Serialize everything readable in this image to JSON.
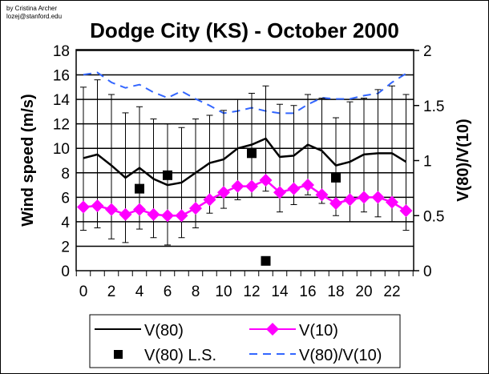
{
  "credit": {
    "author": "by Cristina Archer",
    "email": "lozej@stanford.edu"
  },
  "chart_data": {
    "type": "line",
    "title": "Dodge City (KS) - October 2000",
    "xlabel": "",
    "ylabel": "Wind speed (m/s)",
    "y2label": "V(80)/V(10)",
    "xlim": [
      0,
      23
    ],
    "ylim": [
      0,
      18
    ],
    "y2lim": [
      0,
      2
    ],
    "x": [
      0,
      1,
      2,
      3,
      4,
      5,
      6,
      7,
      8,
      9,
      10,
      11,
      12,
      13,
      14,
      15,
      16,
      17,
      18,
      19,
      20,
      21,
      22,
      23
    ],
    "x_ticks": [
      "0",
      "2",
      "4",
      "6",
      "8",
      "10",
      "12",
      "14",
      "16",
      "18",
      "20",
      "22"
    ],
    "y_ticks": [
      "0",
      "2",
      "4",
      "6",
      "8",
      "10",
      "12",
      "14",
      "16",
      "18"
    ],
    "y2_ticks": [
      "0",
      "0.5",
      "1",
      "1.5",
      "2"
    ],
    "grid": true,
    "legend_position": "bottom",
    "colors": {
      "v80": "#000000",
      "v10": "#ff00ff",
      "ls": "#000000",
      "ratio": "#3366ff"
    },
    "series": [
      {
        "name": "V(80)",
        "axis": "left",
        "values": [
          9.2,
          9.5,
          8.6,
          7.6,
          8.4,
          7.5,
          7.0,
          7.2,
          8.0,
          8.8,
          9.1,
          10.0,
          10.3,
          10.8,
          9.3,
          9.4,
          10.3,
          9.8,
          8.6,
          8.9,
          9.5,
          9.6,
          9.6,
          8.9
        ],
        "error_high": [
          15.0,
          15.6,
          14.4,
          12.9,
          13.4,
          12.4,
          12.0,
          11.7,
          12.4,
          12.7,
          13.1,
          14.0,
          14.5,
          15.1,
          13.6,
          13.5,
          14.4,
          14.1,
          12.5,
          13.8,
          14.1,
          14.8,
          15.1,
          14.4
        ],
        "error_low": [
          3.3,
          3.5,
          2.6,
          2.3,
          3.4,
          2.7,
          2.1,
          2.7,
          3.5,
          4.7,
          5.1,
          5.8,
          6.0,
          6.5,
          4.8,
          5.4,
          6.2,
          5.5,
          4.5,
          4.0,
          4.8,
          4.4,
          4.0,
          3.3
        ]
      },
      {
        "name": "V(10)",
        "axis": "left",
        "values": [
          5.2,
          5.3,
          5.0,
          4.6,
          5.0,
          4.6,
          4.5,
          4.5,
          5.1,
          5.8,
          6.4,
          6.9,
          6.9,
          7.4,
          6.4,
          6.7,
          7.0,
          6.2,
          5.5,
          5.8,
          6.0,
          6.0,
          5.6,
          4.9
        ]
      },
      {
        "name": "V(80) L.S.",
        "axis": "left",
        "x": [
          4,
          6,
          12,
          13,
          18
        ],
        "values": [
          6.7,
          7.8,
          9.6,
          0.8,
          7.6
        ]
      },
      {
        "name": "V(80)/V(10)",
        "axis": "right",
        "values": [
          1.78,
          1.8,
          1.71,
          1.66,
          1.69,
          1.62,
          1.57,
          1.63,
          1.56,
          1.5,
          1.43,
          1.45,
          1.48,
          1.45,
          1.43,
          1.43,
          1.51,
          1.57,
          1.56,
          1.56,
          1.59,
          1.61,
          1.71,
          1.79
        ]
      }
    ]
  }
}
